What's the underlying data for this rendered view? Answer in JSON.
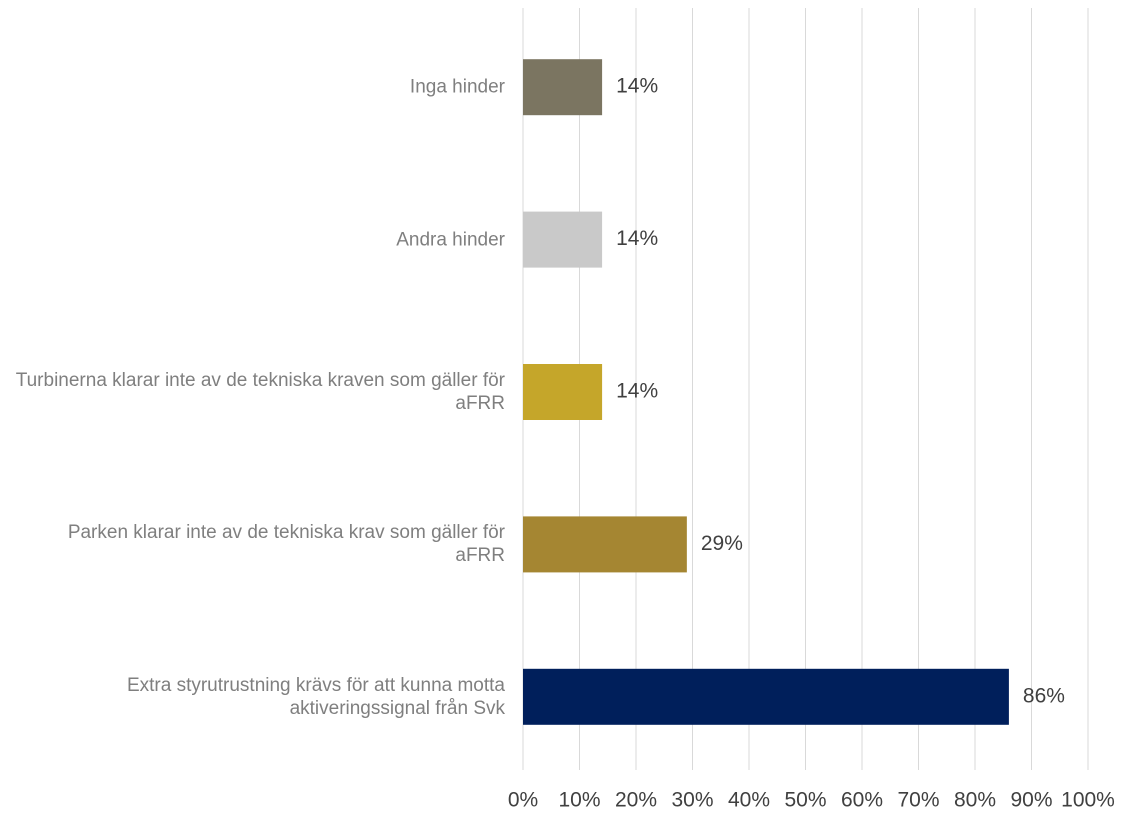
{
  "chart_data": {
    "type": "barh",
    "categories": [
      "Inga hinder",
      "Andra hinder",
      "Turbinerna klarar inte av de tekniska kraven som gäller för aFRR",
      "Parken klarar inte av de tekniska krav som gäller för aFRR",
      "Extra styrutrustning krävs för att kunna motta aktiveringssignal från Svk"
    ],
    "values": [
      14,
      14,
      14,
      29,
      86
    ],
    "value_labels": [
      "14%",
      "14%",
      "14%",
      "29%",
      "86%"
    ],
    "colors": [
      "#7b7561",
      "#c9c9c9",
      "#c5a62a",
      "#a58632",
      "#001f5b"
    ],
    "xlim": [
      0,
      100
    ],
    "xticks": [
      {
        "value": 0,
        "label": "0%"
      },
      {
        "value": 10,
        "label": "10%"
      },
      {
        "value": 20,
        "label": "20%"
      },
      {
        "value": 30,
        "label": "30%"
      },
      {
        "value": 40,
        "label": "40%"
      },
      {
        "value": 50,
        "label": "50%"
      },
      {
        "value": 60,
        "label": "60%"
      },
      {
        "value": 70,
        "label": "70%"
      },
      {
        "value": 80,
        "label": "80%"
      },
      {
        "value": 90,
        "label": "90%"
      },
      {
        "value": 100,
        "label": "100%"
      }
    ],
    "grid": true
  }
}
